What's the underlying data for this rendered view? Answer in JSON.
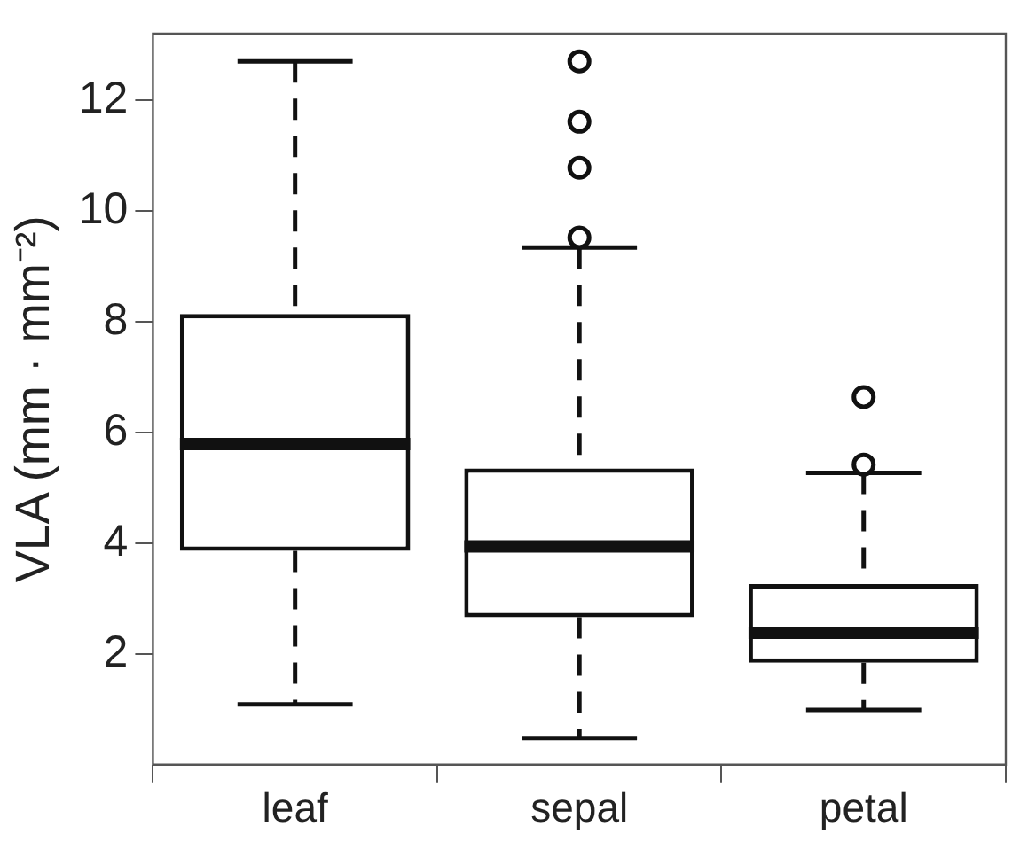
{
  "chart_data": {
    "type": "box",
    "ylabel": "VLA (mm · mm⁻²)",
    "categories": [
      "leaf",
      "sepal",
      "petal"
    ],
    "boxes": [
      {
        "low": 1.09,
        "q1": 3.86,
        "median": 5.79,
        "q3": 8.14,
        "high": 12.7
      },
      {
        "low": 0.48,
        "q1": 2.66,
        "median": 3.94,
        "q3": 5.35,
        "high": 9.34,
        "outliers": [
          9.52,
          10.78,
          11.61,
          12.7
        ]
      },
      {
        "low": 0.99,
        "q1": 1.84,
        "median": 2.38,
        "q3": 3.26,
        "high": 5.27,
        "outliers": [
          5.42,
          6.64
        ]
      }
    ],
    "ylim": [
      0,
      13.2
    ],
    "yticks": [
      2,
      4,
      6,
      8,
      10,
      12
    ],
    "grid": false
  }
}
